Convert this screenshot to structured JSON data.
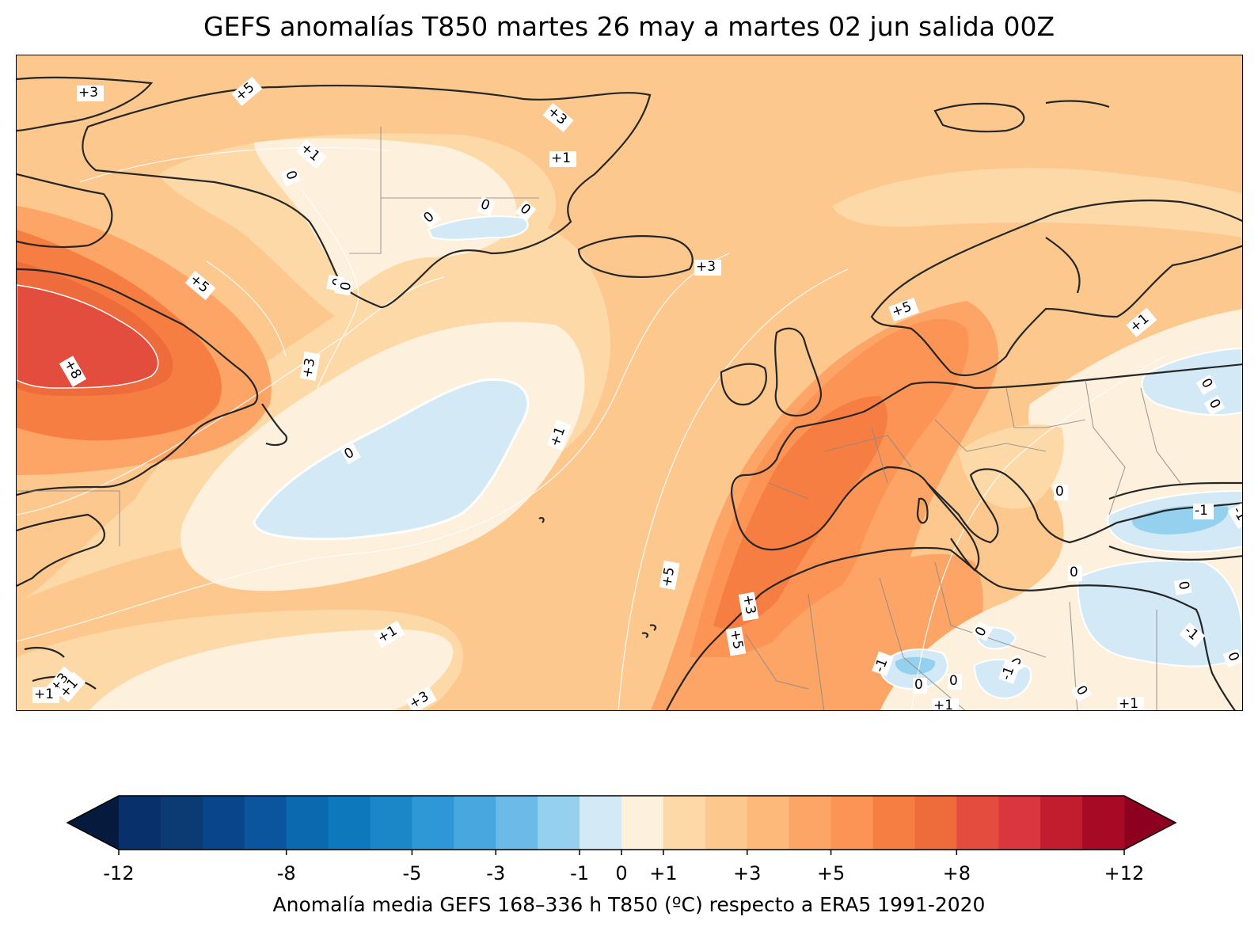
{
  "title": "GEFS anomalías T850 martes 26 may a martes 02 jun salida 00Z",
  "colorbar": {
    "caption": "Anomalía media GEFS 168–336 h T850 (ºC) respecto a ERA5 1991-2020",
    "bounds": [
      -12,
      -11,
      -10,
      -9,
      -8,
      -7,
      -6,
      -5,
      -4,
      -3,
      -2,
      -1,
      0,
      1,
      2,
      3,
      4,
      5,
      6,
      7,
      8,
      9,
      10,
      11,
      12
    ],
    "colors": [
      "#08306b",
      "#0c3b74",
      "#08458a",
      "#0a559e",
      "#0b6aaf",
      "#0e78bd",
      "#1b87c8",
      "#2e97d5",
      "#49a7df",
      "#6cbae7",
      "#96d0ef",
      "#d3eaf6",
      "#fdf0dc",
      "#fdd9a8",
      "#fdc88e",
      "#fdb97a",
      "#fca566",
      "#fb9454",
      "#f77e43",
      "#ee6b3c",
      "#e34d3e",
      "#d9363f",
      "#c11d2e",
      "#a70a24"
    ],
    "under_color": "#051a3d",
    "over_color": "#8e0020",
    "tick_labels": [
      {
        "value": -12,
        "label": "-12"
      },
      {
        "value": -8,
        "label": "-8"
      },
      {
        "value": -5,
        "label": "-5"
      },
      {
        "value": -3,
        "label": "-3"
      },
      {
        "value": -1,
        "label": "-1"
      },
      {
        "value": 0,
        "label": "0"
      },
      {
        "value": 1,
        "label": "+1"
      },
      {
        "value": 3,
        "label": "+3"
      },
      {
        "value": 5,
        "label": "+5"
      },
      {
        "value": 8,
        "label": "+8"
      },
      {
        "value": 12,
        "label": "+12"
      }
    ]
  },
  "contour_labels": [
    "+3",
    "+5",
    "+3",
    "+1",
    "0",
    "0",
    "0",
    "0",
    "0",
    "0",
    "+1",
    "+3",
    "+5",
    "+8",
    "+3",
    "0",
    "+1",
    "+3",
    "+5",
    "+1",
    "0",
    "0",
    "0",
    "0",
    "0",
    "0",
    "-1",
    "-1",
    "+5",
    "+3",
    "+5",
    "+1",
    "+3",
    "0",
    "0",
    "0",
    "0",
    "+1",
    "+1",
    "+1",
    "-1",
    "0",
    "-1",
    "-1",
    "+1"
  ]
}
